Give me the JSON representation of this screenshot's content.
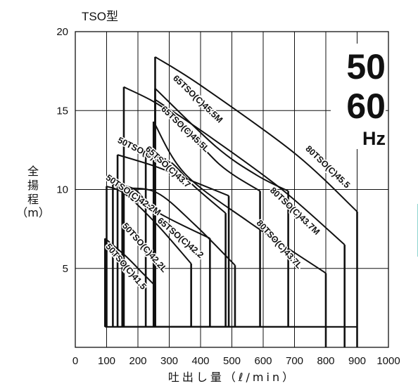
{
  "chart_data": {
    "type": "line",
    "title": "TSO型",
    "xlabel": "吐出し量（ℓ/min）",
    "ylabel": [
      "全",
      "揚",
      "程",
      "（m）"
    ],
    "xlim": [
      0,
      1000
    ],
    "ylim": [
      0,
      20
    ],
    "xticks": [
      0,
      100,
      200,
      300,
      400,
      500,
      600,
      700,
      800,
      900,
      1000
    ],
    "yticks": [
      5,
      10,
      15,
      20
    ],
    "frequency_badge": {
      "line1": "50",
      "line2": "60",
      "line3": "Hz"
    },
    "series": [
      {
        "name": "50TSO(C)41.5",
        "x": [
          95,
          160,
          215,
          255
        ],
        "y": [
          6.9,
          5.8,
          4.7,
          3.9
        ],
        "min_flow": 95,
        "max_flow": 255,
        "label_at": [
          155,
          5.0
        ]
      },
      {
        "name": "50TSO(C)42.2L",
        "x": [
          100,
          160,
          260,
          370
        ],
        "y": [
          10.2,
          9.7,
          7.8,
          5.3
        ],
        "min_flow": 100,
        "max_flow": 370,
        "label_at": [
          215,
          6.2
        ]
      },
      {
        "name": "50TSO(C)42.2M",
        "x": [
          120,
          190,
          260,
          430
        ],
        "y": [
          10.3,
          10.0,
          8.6,
          6.9
        ],
        "min_flow": 120,
        "max_flow": 430,
        "label_at": [
          180,
          9.5
        ]
      },
      {
        "name": "65TSO(C)42.2",
        "x": [
          150,
          260,
          380,
          510
        ],
        "y": [
          10.1,
          9.8,
          7.8,
          5.2
        ],
        "min_flow": 150,
        "max_flow": 510,
        "label_at": [
          330,
          6.8
        ]
      },
      {
        "name": "50TSO(C)43.7",
        "x": [
          135,
          250,
          340,
          490
        ],
        "y": [
          12.2,
          11.5,
          10.8,
          9.6
        ],
        "min_flow": 135,
        "max_flow": 490,
        "label_at": [
          215,
          12.2
        ]
      },
      {
        "name": "65TSO(C)43.7",
        "x": [
          225,
          300,
          380,
          480
        ],
        "y": [
          12.2,
          11.8,
          10.2,
          8.5
        ],
        "min_flow": 225,
        "max_flow": 480,
        "label_at": [
          290,
          11.3
        ]
      },
      {
        "name": "80TSO(C)43.7L",
        "x": [
          250,
          350,
          550,
          800
        ],
        "y": [
          14.3,
          11.0,
          8.0,
          4.7
        ],
        "min_flow": 250,
        "max_flow": 800,
        "label_at": [
          645,
          6.4
        ]
      },
      {
        "name": "65TSO(C)45.5L",
        "x": [
          155,
          300,
          460,
          590
        ],
        "y": [
          16.5,
          14.9,
          11.6,
          9.9
        ],
        "min_flow": 155,
        "max_flow": 590,
        "label_at": [
          345,
          13.7
        ]
      },
      {
        "name": "80TSO(C)43.7M",
        "x": [
          255,
          440,
          660,
          860
        ],
        "y": [
          15.7,
          13.2,
          10.0,
          6.5
        ],
        "min_flow": 255,
        "max_flow": 860,
        "label_at": [
          695,
          8.5
        ]
      },
      {
        "name": "65TSO(C)45.5M",
        "x": [
          255,
          450,
          580,
          680
        ],
        "y": [
          16.4,
          12.7,
          10.9,
          9.9
        ],
        "min_flow": 255,
        "max_flow": 680,
        "label_at": [
          385,
          15.6
        ]
      },
      {
        "name": "80TSO(C)45.5",
        "x": [
          255,
          400,
          700,
          900
        ],
        "y": [
          18.4,
          16.6,
          12.3,
          8.6
        ],
        "min_flow": 255,
        "max_flow": 900,
        "label_at": [
          800,
          11.3
        ]
      }
    ]
  }
}
